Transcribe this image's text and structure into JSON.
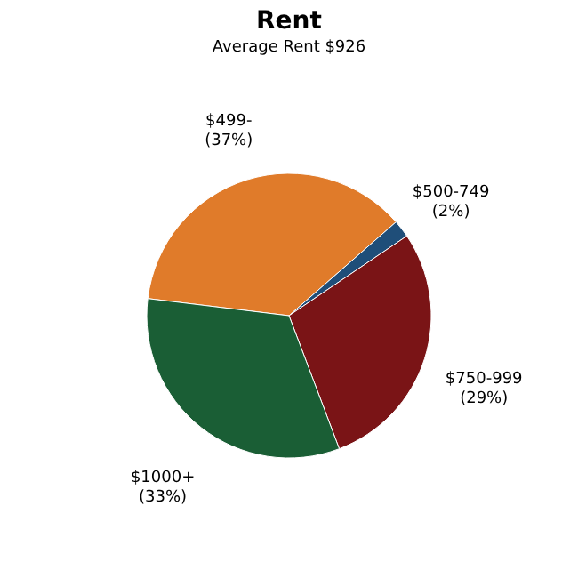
{
  "chart_data": {
    "type": "pie",
    "title": "Rent",
    "subtitle": "Average Rent  $926",
    "categories": [
      "$499-",
      "$500-749",
      "$750-999",
      "$1000+"
    ],
    "values": [
      37,
      2,
      29,
      33
    ],
    "value_labels": [
      "(37%)",
      "(2%)",
      "(29%)",
      "(33%)"
    ],
    "colors": [
      "#e07b2a",
      "#1f4e79",
      "#7a1416",
      "#1a5e35"
    ],
    "legend": false
  }
}
